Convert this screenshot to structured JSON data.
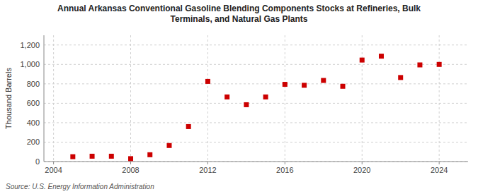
{
  "chart_data": {
    "type": "scatter",
    "title": "Annual Arkansas Conventional Gasoline Blending Components Stocks at Refineries, Bulk\nTerminals, and Natural Gas Plants",
    "y_label": "Thousand Barrels",
    "source": "Source: U.S. Energy Information Administration",
    "x": [
      2005,
      2006,
      2007,
      2008,
      2009,
      2010,
      2011,
      2012,
      2013,
      2014,
      2015,
      2016,
      2017,
      2018,
      2019,
      2020,
      2021,
      2022,
      2023,
      2024
    ],
    "values": [
      50,
      55,
      55,
      30,
      70,
      165,
      360,
      825,
      665,
      585,
      665,
      795,
      785,
      835,
      775,
      1045,
      1085,
      865,
      995,
      1000
    ],
    "color": "#cc0000",
    "marker": "square",
    "xlim": [
      2003.5,
      2025.5
    ],
    "ylim": [
      0,
      1300
    ],
    "xticks": [
      2004,
      2008,
      2012,
      2016,
      2020,
      2024
    ],
    "yticks": [
      0,
      200,
      400,
      600,
      800,
      {
        "value": 1000,
        "label": "1,000"
      },
      {
        "value": 1200,
        "label": "1,200"
      }
    ],
    "grid": true
  }
}
